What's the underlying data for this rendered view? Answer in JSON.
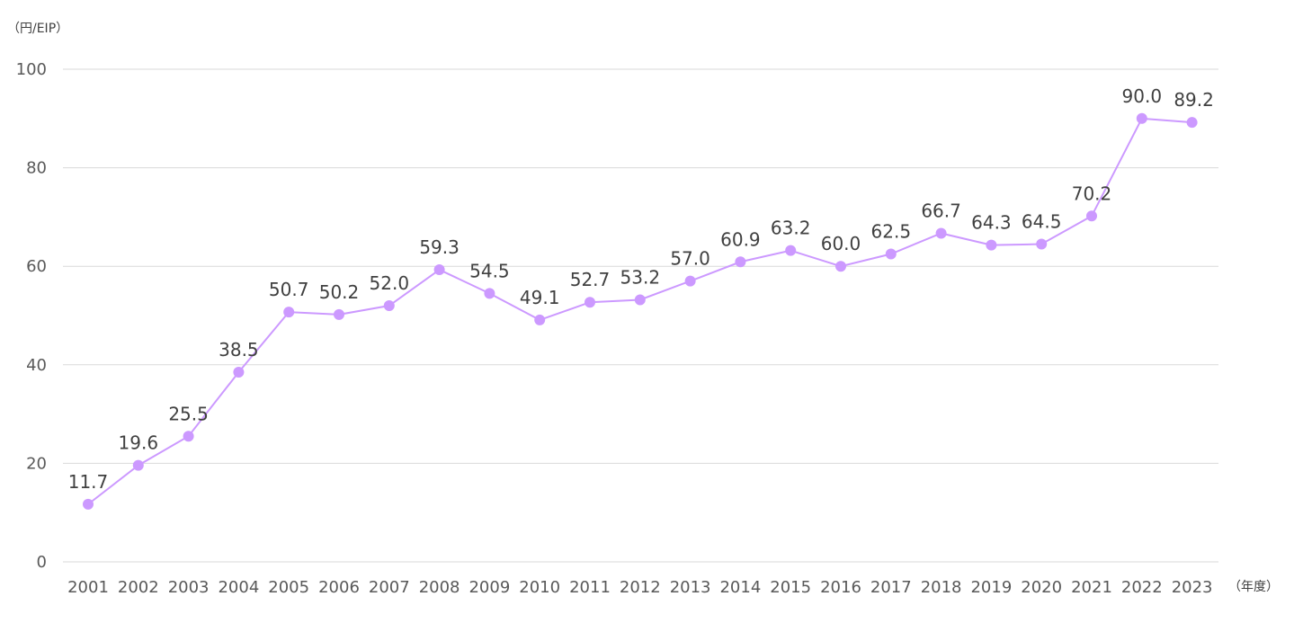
{
  "chart_data": {
    "type": "line",
    "yunit": "（円/EIP）",
    "xunit": "（年度）",
    "ylim": [
      0,
      100
    ],
    "yticks": [
      0,
      20,
      40,
      60,
      80,
      100
    ],
    "grid": true,
    "color": "#cc99ff",
    "categories": [
      "2001",
      "2002",
      "2003",
      "2004",
      "2005",
      "2006",
      "2007",
      "2008",
      "2009",
      "2010",
      "2011",
      "2012",
      "2013",
      "2014",
      "2015",
      "2016",
      "2017",
      "2018",
      "2019",
      "2020",
      "2021",
      "2022",
      "2023"
    ],
    "values": [
      11.7,
      19.6,
      25.5,
      38.5,
      50.7,
      50.2,
      52.0,
      59.3,
      54.5,
      49.1,
      52.7,
      53.2,
      57.0,
      60.9,
      63.2,
      60.0,
      62.5,
      66.7,
      64.3,
      64.5,
      70.2,
      90.0,
      89.2
    ],
    "labels": [
      "11.7",
      "19.6",
      "25.5",
      "38.5",
      "50.7",
      "50.2",
      "52.0",
      "59.3",
      "54.5",
      "49.1",
      "52.7",
      "53.2",
      "57.0",
      "60.9",
      "63.2",
      "60.0",
      "62.5",
      "66.7",
      "64.3",
      "64.5",
      "70.2",
      "90.0",
      "89.2"
    ]
  }
}
